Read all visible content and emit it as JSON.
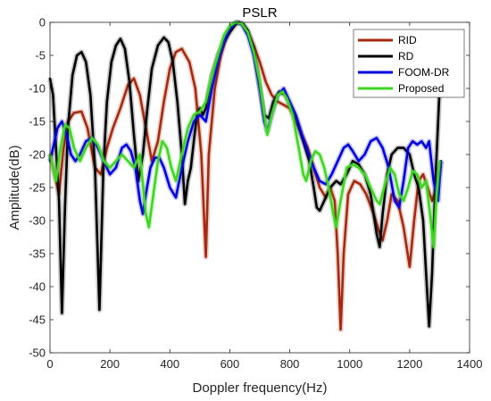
{
  "chart_data": {
    "type": "line",
    "title": "PSLR",
    "xlabel": "Doppler frequency(Hz)",
    "ylabel": "Amplitude(dB)",
    "xlim": [
      0,
      1400
    ],
    "ylim": [
      -50,
      0
    ],
    "xticks": [
      0,
      200,
      400,
      600,
      800,
      1000,
      1200,
      1400
    ],
    "yticks": [
      0,
      -5,
      -10,
      -15,
      -20,
      -25,
      -30,
      -35,
      -40,
      -45,
      -50
    ],
    "grid": false,
    "legend_position": "top-right",
    "series": [
      {
        "name": "RID",
        "color": "#a52a0f",
        "points": [
          [
            0,
            -20
          ],
          [
            15,
            -23
          ],
          [
            30,
            -26
          ],
          [
            45,
            -19
          ],
          [
            60,
            -15
          ],
          [
            80,
            -13.7
          ],
          [
            105,
            -13.5
          ],
          [
            125,
            -16
          ],
          [
            150,
            -22
          ],
          [
            170,
            -23
          ],
          [
            190,
            -19
          ],
          [
            210,
            -16
          ],
          [
            235,
            -13
          ],
          [
            260,
            -9.5
          ],
          [
            280,
            -8.5
          ],
          [
            300,
            -11
          ],
          [
            320,
            -16
          ],
          [
            340,
            -21
          ],
          [
            360,
            -18
          ],
          [
            380,
            -12
          ],
          [
            400,
            -7
          ],
          [
            420,
            -4.5
          ],
          [
            440,
            -4
          ],
          [
            465,
            -6
          ],
          [
            485,
            -10
          ],
          [
            505,
            -20
          ],
          [
            520,
            -35.5
          ],
          [
            530,
            -20
          ],
          [
            550,
            -10
          ],
          [
            570,
            -5
          ],
          [
            590,
            -2
          ],
          [
            610,
            -0.5
          ],
          [
            625,
            0
          ],
          [
            640,
            -0.2
          ],
          [
            660,
            -1.5
          ],
          [
            680,
            -3.5
          ],
          [
            700,
            -6
          ],
          [
            720,
            -9
          ],
          [
            740,
            -11
          ],
          [
            760,
            -12
          ],
          [
            780,
            -12.5
          ],
          [
            800,
            -13
          ],
          [
            820,
            -15
          ],
          [
            840,
            -17
          ],
          [
            860,
            -19
          ],
          [
            880,
            -22
          ],
          [
            900,
            -25
          ],
          [
            920,
            -26.5
          ],
          [
            935,
            -25
          ],
          [
            950,
            -27
          ],
          [
            960,
            -35
          ],
          [
            970,
            -46.5
          ],
          [
            980,
            -35
          ],
          [
            995,
            -26
          ],
          [
            1015,
            -24
          ],
          [
            1035,
            -24.5
          ],
          [
            1055,
            -26
          ],
          [
            1080,
            -29
          ],
          [
            1100,
            -32
          ],
          [
            1110,
            -33
          ],
          [
            1125,
            -30
          ],
          [
            1140,
            -26
          ],
          [
            1160,
            -27
          ],
          [
            1180,
            -31
          ],
          [
            1200,
            -37
          ],
          [
            1215,
            -30
          ],
          [
            1230,
            -24
          ],
          [
            1245,
            -23
          ],
          [
            1260,
            -25
          ],
          [
            1275,
            -27
          ],
          [
            1290,
            -25
          ],
          [
            1305,
            -21
          ]
        ]
      },
      {
        "name": "RD",
        "color": "#000000",
        "points": [
          [
            0,
            -8.5
          ],
          [
            10,
            -11
          ],
          [
            20,
            -19
          ],
          [
            30,
            -27
          ],
          [
            40,
            -44
          ],
          [
            50,
            -28
          ],
          [
            60,
            -16
          ],
          [
            75,
            -8
          ],
          [
            90,
            -5
          ],
          [
            105,
            -4.5
          ],
          [
            120,
            -6
          ],
          [
            135,
            -11
          ],
          [
            150,
            -22
          ],
          [
            165,
            -43.5
          ],
          [
            178,
            -22
          ],
          [
            190,
            -12
          ],
          [
            205,
            -6
          ],
          [
            220,
            -3.5
          ],
          [
            235,
            -2.5
          ],
          [
            250,
            -4
          ],
          [
            265,
            -9
          ],
          [
            280,
            -17
          ],
          [
            295,
            -24
          ],
          [
            310,
            -20
          ],
          [
            325,
            -13
          ],
          [
            340,
            -7
          ],
          [
            360,
            -3.5
          ],
          [
            380,
            -2.3
          ],
          [
            395,
            -3
          ],
          [
            410,
            -6
          ],
          [
            425,
            -12
          ],
          [
            440,
            -20
          ],
          [
            450,
            -27.5
          ],
          [
            460,
            -24
          ],
          [
            470,
            -22
          ],
          [
            480,
            -18
          ],
          [
            490,
            -14
          ],
          [
            500,
            -13
          ],
          [
            510,
            -14
          ],
          [
            520,
            -13
          ],
          [
            540,
            -8
          ],
          [
            560,
            -5
          ],
          [
            580,
            -3
          ],
          [
            600,
            -1.5
          ],
          [
            620,
            -0.3
          ],
          [
            630,
            0
          ],
          [
            645,
            -0.3
          ],
          [
            660,
            -1.2
          ],
          [
            680,
            -4
          ],
          [
            700,
            -10
          ],
          [
            715,
            -14
          ],
          [
            730,
            -14.5
          ],
          [
            745,
            -12
          ],
          [
            765,
            -10.5
          ],
          [
            785,
            -11
          ],
          [
            805,
            -13
          ],
          [
            825,
            -15
          ],
          [
            845,
            -18
          ],
          [
            865,
            -21
          ],
          [
            880,
            -25
          ],
          [
            890,
            -28
          ],
          [
            900,
            -28.5
          ],
          [
            915,
            -27
          ],
          [
            935,
            -25
          ],
          [
            955,
            -24
          ],
          [
            970,
            -24.5
          ],
          [
            990,
            -23
          ],
          [
            1010,
            -21
          ],
          [
            1030,
            -21.5
          ],
          [
            1050,
            -23
          ],
          [
            1070,
            -26
          ],
          [
            1090,
            -32
          ],
          [
            1100,
            -34
          ],
          [
            1110,
            -29
          ],
          [
            1125,
            -23
          ],
          [
            1140,
            -20
          ],
          [
            1160,
            -19
          ],
          [
            1180,
            -19
          ],
          [
            1200,
            -20
          ],
          [
            1215,
            -23
          ],
          [
            1230,
            -25
          ],
          [
            1245,
            -30
          ],
          [
            1255,
            -38
          ],
          [
            1265,
            -46
          ],
          [
            1275,
            -38
          ],
          [
            1285,
            -25
          ],
          [
            1295,
            -15
          ],
          [
            1305,
            -5
          ]
        ]
      },
      {
        "name": "FOOM-DR",
        "color": "#0000e0",
        "points": [
          [
            0,
            -21
          ],
          [
            10,
            -19
          ],
          [
            25,
            -16
          ],
          [
            40,
            -15
          ],
          [
            55,
            -17
          ],
          [
            70,
            -20
          ],
          [
            85,
            -21
          ],
          [
            100,
            -20
          ],
          [
            120,
            -18
          ],
          [
            140,
            -17.5
          ],
          [
            160,
            -19
          ],
          [
            180,
            -21
          ],
          [
            200,
            -23
          ],
          [
            220,
            -22
          ],
          [
            240,
            -19
          ],
          [
            255,
            -18.5
          ],
          [
            270,
            -19.5
          ],
          [
            285,
            -22
          ],
          [
            300,
            -27
          ],
          [
            310,
            -29
          ],
          [
            320,
            -26
          ],
          [
            335,
            -22
          ],
          [
            350,
            -20.5
          ],
          [
            365,
            -20.5
          ],
          [
            380,
            -22
          ],
          [
            400,
            -25
          ],
          [
            420,
            -26.5
          ],
          [
            440,
            -22
          ],
          [
            460,
            -18
          ],
          [
            480,
            -15
          ],
          [
            500,
            -14
          ],
          [
            520,
            -15
          ],
          [
            540,
            -10
          ],
          [
            560,
            -6
          ],
          [
            580,
            -3
          ],
          [
            600,
            -1
          ],
          [
            620,
            0
          ],
          [
            640,
            -0.3
          ],
          [
            660,
            -2
          ],
          [
            680,
            -5
          ],
          [
            700,
            -10
          ],
          [
            715,
            -15
          ],
          [
            725,
            -16.5
          ],
          [
            740,
            -14
          ],
          [
            760,
            -11
          ],
          [
            780,
            -10
          ],
          [
            800,
            -12
          ],
          [
            820,
            -14
          ],
          [
            840,
            -17
          ],
          [
            860,
            -19.5
          ],
          [
            880,
            -22
          ],
          [
            900,
            -24
          ],
          [
            920,
            -24.5
          ],
          [
            940,
            -23
          ],
          [
            960,
            -21
          ],
          [
            980,
            -19
          ],
          [
            995,
            -18.5
          ],
          [
            1010,
            -19.5
          ],
          [
            1030,
            -21
          ],
          [
            1050,
            -20
          ],
          [
            1070,
            -18
          ],
          [
            1090,
            -17.5
          ],
          [
            1110,
            -19
          ],
          [
            1130,
            -22
          ],
          [
            1150,
            -27
          ],
          [
            1165,
            -28
          ],
          [
            1180,
            -24
          ],
          [
            1195,
            -19
          ],
          [
            1210,
            -18
          ],
          [
            1225,
            -18.5
          ],
          [
            1240,
            -18
          ],
          [
            1255,
            -19
          ],
          [
            1265,
            -18
          ],
          [
            1280,
            -24
          ],
          [
            1295,
            -27
          ],
          [
            1305,
            -21
          ]
        ]
      },
      {
        "name": "Proposed",
        "color": "#3ed620",
        "points": [
          [
            0,
            -20
          ],
          [
            10,
            -22
          ],
          [
            20,
            -24
          ],
          [
            35,
            -19
          ],
          [
            50,
            -15.5
          ],
          [
            65,
            -16
          ],
          [
            80,
            -19
          ],
          [
            100,
            -21
          ],
          [
            120,
            -19
          ],
          [
            140,
            -17.5
          ],
          [
            160,
            -18.5
          ],
          [
            180,
            -21
          ],
          [
            200,
            -22
          ],
          [
            220,
            -21
          ],
          [
            240,
            -20
          ],
          [
            260,
            -21
          ],
          [
            280,
            -22
          ],
          [
            300,
            -20
          ],
          [
            320,
            -29
          ],
          [
            330,
            -31
          ],
          [
            345,
            -26
          ],
          [
            360,
            -21
          ],
          [
            375,
            -18
          ],
          [
            390,
            -19
          ],
          [
            405,
            -22
          ],
          [
            420,
            -24
          ],
          [
            440,
            -20
          ],
          [
            460,
            -16
          ],
          [
            480,
            -14
          ],
          [
            500,
            -13.5
          ],
          [
            520,
            -12
          ],
          [
            540,
            -8
          ],
          [
            560,
            -5
          ],
          [
            580,
            -2
          ],
          [
            600,
            -0.5
          ],
          [
            620,
            0
          ],
          [
            640,
            -0.2
          ],
          [
            660,
            -1.5
          ],
          [
            680,
            -4.5
          ],
          [
            700,
            -9
          ],
          [
            715,
            -14
          ],
          [
            725,
            -17
          ],
          [
            740,
            -14
          ],
          [
            760,
            -11
          ],
          [
            775,
            -10.5
          ],
          [
            790,
            -11.5
          ],
          [
            810,
            -14
          ],
          [
            830,
            -19
          ],
          [
            845,
            -23
          ],
          [
            855,
            -24
          ],
          [
            870,
            -21
          ],
          [
            885,
            -19.5
          ],
          [
            900,
            -20
          ],
          [
            915,
            -22
          ],
          [
            930,
            -25
          ],
          [
            945,
            -29
          ],
          [
            955,
            -31
          ],
          [
            970,
            -27
          ],
          [
            990,
            -22
          ],
          [
            1010,
            -21.5
          ],
          [
            1030,
            -22
          ],
          [
            1050,
            -23
          ],
          [
            1070,
            -25
          ],
          [
            1090,
            -27
          ],
          [
            1100,
            -27.5
          ],
          [
            1115,
            -25
          ],
          [
            1135,
            -22
          ],
          [
            1150,
            -23
          ],
          [
            1165,
            -26
          ],
          [
            1180,
            -27
          ],
          [
            1195,
            -25
          ],
          [
            1210,
            -22.5
          ],
          [
            1225,
            -23
          ],
          [
            1240,
            -25
          ],
          [
            1255,
            -24
          ],
          [
            1268,
            -29
          ],
          [
            1280,
            -34
          ],
          [
            1290,
            -26
          ],
          [
            1300,
            -21
          ]
        ]
      }
    ]
  }
}
